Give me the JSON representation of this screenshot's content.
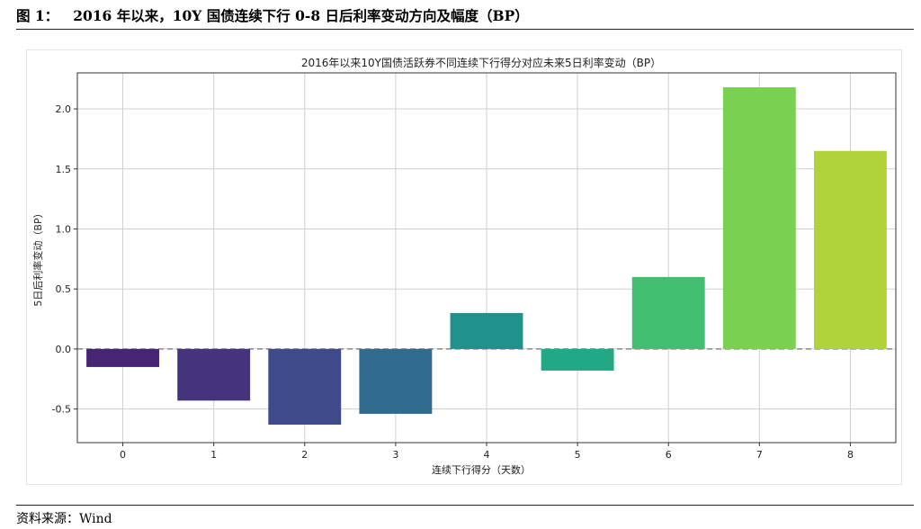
{
  "figure": {
    "label": "图 1：",
    "title": "2016 年以来，10Y 国债连续下行 0-8 日后利率变动方向及幅度（BP）",
    "source": "资料来源：Wind"
  },
  "chart_data": {
    "type": "bar",
    "title": "2016年以来10Y国债活跃券不同连续下行得分对应未来5日利率变动（BP）",
    "xlabel": "连续下行得分（天数）",
    "ylabel": "5日后利率变动（BP）",
    "categories": [
      "0",
      "1",
      "2",
      "3",
      "4",
      "5",
      "6",
      "7",
      "8"
    ],
    "values": [
      -0.15,
      -0.43,
      -0.63,
      -0.54,
      0.3,
      -0.18,
      0.6,
      2.18,
      1.65
    ],
    "colors": [
      "#482475",
      "#46337e",
      "#3e4a89",
      "#306a8e",
      "#21918c",
      "#22a884",
      "#42be71",
      "#7ad151",
      "#b0d23a"
    ],
    "ylim": [
      -0.78,
      2.3
    ],
    "yticks": [
      "-0.5",
      "0.0",
      "0.5",
      "1.0",
      "1.5",
      "2.0"
    ],
    "grid": true,
    "zero_line": "dashed gray"
  }
}
